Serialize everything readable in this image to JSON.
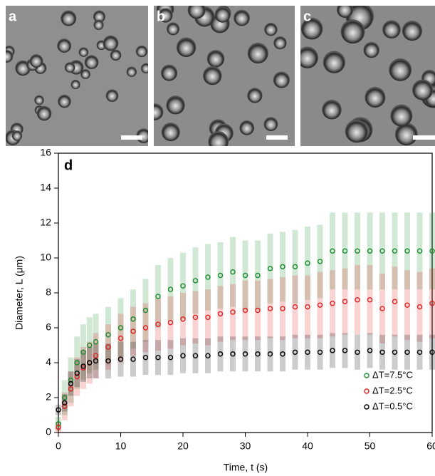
{
  "panels": [
    "a",
    "b",
    "c"
  ],
  "chart_data": {
    "type": "scatter",
    "panel_label": "d",
    "x_label": "Time, t (s)",
    "y_label": "Diameter, L (μm)",
    "x": [
      0,
      1,
      2,
      3,
      4,
      5,
      6,
      8,
      10,
      12,
      14,
      16,
      18,
      20,
      22,
      24,
      26,
      28,
      30,
      32,
      34,
      36,
      38,
      40,
      42,
      44,
      46,
      48,
      50,
      52,
      54,
      56,
      58,
      60
    ],
    "xlim": [
      0,
      60
    ],
    "xticks": [
      0,
      10,
      20,
      30,
      40,
      50,
      60
    ],
    "ylim": [
      0,
      16
    ],
    "yticks": [
      0,
      2,
      4,
      6,
      8,
      10,
      12,
      14,
      16
    ],
    "legend": "lower right",
    "series": [
      {
        "name": "ΔT=7.5°C",
        "color": "#1a8a2e",
        "values": [
          0.5,
          2.0,
          3.0,
          4.0,
          4.6,
          5.0,
          5.2,
          5.6,
          6.0,
          6.5,
          7.0,
          7.8,
          8.2,
          8.4,
          8.7,
          8.9,
          9.0,
          9.2,
          9.0,
          9.0,
          9.4,
          9.5,
          9.5,
          9.7,
          9.8,
          10.4,
          10.4,
          10.4,
          10.4,
          10.4,
          10.4,
          10.4,
          10.4,
          10.4
        ],
        "errors": [
          0.4,
          1.0,
          1.3,
          1.5,
          1.6,
          1.6,
          1.6,
          1.6,
          1.7,
          1.7,
          1.8,
          1.8,
          1.8,
          1.9,
          1.9,
          1.9,
          1.9,
          2.0,
          2.0,
          2.0,
          2.0,
          2.0,
          2.1,
          2.1,
          2.1,
          2.2,
          2.2,
          2.2,
          2.2,
          2.2,
          2.2,
          2.2,
          2.2,
          2.2
        ]
      },
      {
        "name": "ΔT=2.5°C",
        "color": "#e02020",
        "values": [
          0.3,
          1.5,
          2.5,
          3.2,
          3.7,
          4.0,
          4.4,
          4.9,
          5.4,
          5.8,
          6.0,
          6.2,
          6.3,
          6.5,
          6.6,
          6.6,
          6.8,
          6.9,
          7.0,
          7.0,
          7.1,
          7.1,
          7.2,
          7.2,
          7.3,
          7.4,
          7.5,
          7.6,
          7.6,
          7.1,
          7.5,
          7.3,
          7.2,
          7.4
        ],
        "errors": [
          0.3,
          0.8,
          1.0,
          1.1,
          1.2,
          1.2,
          1.3,
          1.3,
          1.4,
          1.4,
          1.4,
          1.5,
          1.5,
          1.5,
          1.5,
          1.6,
          1.6,
          1.6,
          1.7,
          1.7,
          1.7,
          1.8,
          1.8,
          1.8,
          1.9,
          1.9,
          1.9,
          2.0,
          2.0,
          2.0,
          2.0,
          2.0,
          2.0,
          2.0
        ]
      },
      {
        "name": "ΔT=0.5°C",
        "color": "#000000",
        "values": [
          1.3,
          1.7,
          2.8,
          3.4,
          3.8,
          4.0,
          4.1,
          4.1,
          4.2,
          4.2,
          4.3,
          4.3,
          4.3,
          4.4,
          4.4,
          4.4,
          4.5,
          4.5,
          4.5,
          4.5,
          4.5,
          4.5,
          4.6,
          4.6,
          4.6,
          4.7,
          4.7,
          4.6,
          4.7,
          4.6,
          4.6,
          4.6,
          4.6,
          4.6
        ],
        "errors": [
          0.3,
          0.5,
          0.7,
          0.8,
          0.9,
          0.9,
          1.0,
          1.0,
          1.0,
          1.0,
          1.0,
          1.0,
          1.0,
          1.0,
          1.0,
          1.0,
          1.0,
          1.0,
          1.0,
          1.0,
          1.0,
          1.0,
          1.0,
          1.0,
          1.0,
          1.0,
          1.0,
          1.0,
          1.0,
          1.0,
          1.0,
          1.0,
          1.0,
          1.0
        ]
      }
    ]
  }
}
